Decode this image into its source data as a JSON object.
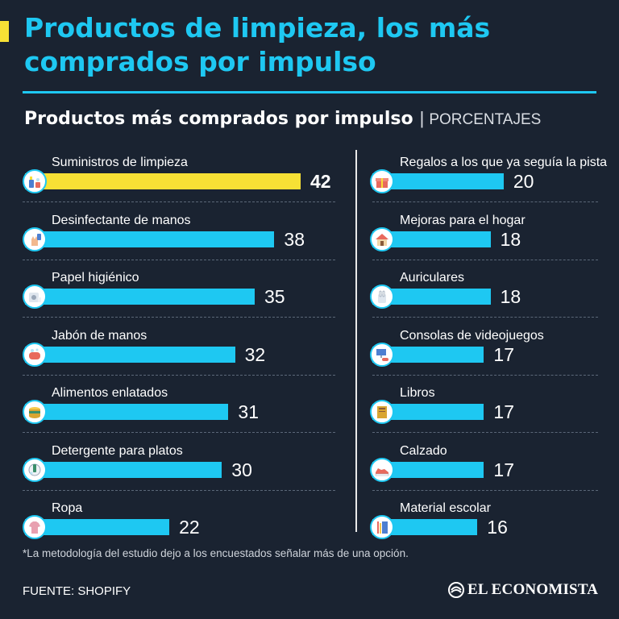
{
  "header": {
    "title": "Productos de limpieza, los más comprados por impulso",
    "subtitle": "Productos más comprados por impulso",
    "separator": "|",
    "unit": "PORCENTAJES"
  },
  "colors": {
    "background": "#1a2331",
    "accent": "#1ec8f2",
    "highlight": "#f7e135",
    "text": "#ffffff"
  },
  "chart_data": {
    "type": "bar",
    "orientation": "horizontal",
    "unit": "PORCENTAJES",
    "xlim": [
      0,
      42
    ],
    "grid": false,
    "columns": [
      {
        "categories": [
          "Suministros de limpieza",
          "Desinfectante de manos",
          "Papel higiénico",
          "Jabón de manos",
          "Alimentos enlatados",
          "Detergente para platos",
          "Ropa"
        ],
        "values": [
          42,
          38,
          35,
          32,
          31,
          30,
          22
        ],
        "icons": [
          "cleaning-supplies-icon",
          "hand-sanitizer-icon",
          "toilet-paper-icon",
          "hand-soap-icon",
          "canned-food-icon",
          "dish-detergent-icon",
          "clothing-icon"
        ]
      },
      {
        "categories": [
          "Regalos a los que ya seguía la pista",
          "Mejoras para el hogar",
          "Auriculares",
          "Consolas de videojuegos",
          "Libros",
          "Calzado",
          "Material escolar"
        ],
        "values": [
          20,
          18,
          18,
          17,
          17,
          17,
          16
        ],
        "icons": [
          "gift-icon",
          "home-improvement-icon",
          "headphones-icon",
          "game-console-icon",
          "book-icon",
          "shoe-icon",
          "school-supplies-icon"
        ]
      }
    ],
    "highlight": "Suministros de limpieza"
  },
  "footer": {
    "note": "*La metodología del estudio dejo a los encuestados señalar más de una opción.",
    "source": "FUENTE: SHOPIFY",
    "brand": "EL ECONOMISTA"
  }
}
